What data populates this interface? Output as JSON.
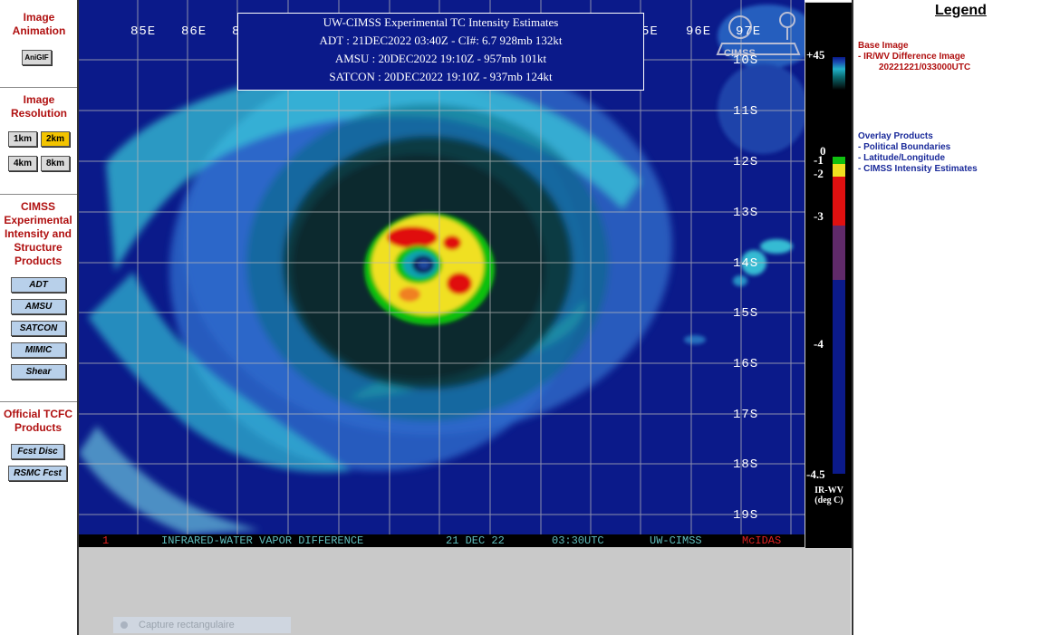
{
  "sidebar": {
    "image_animation": {
      "title": "Image Animation",
      "animgif": "AniGIF"
    },
    "image_resolution": {
      "title": "Image Resolution",
      "buttons": [
        "1km",
        "2km",
        "4km",
        "8km"
      ],
      "selected": "2km"
    },
    "cimss": {
      "title": "CIMSS Experimental Intensity and Structure Products",
      "buttons": [
        "ADT",
        "AMSU",
        "SATCON",
        "MIMIC",
        "Shear"
      ]
    },
    "official": {
      "title": "Official TCFC Products",
      "buttons": [
        "Fcst Disc",
        "RSMC Fcst"
      ]
    }
  },
  "infobox": {
    "title": "UW-CIMSS Experimental TC Intensity Estimates",
    "adt": "ADT : 21DEC2022 03:40Z -   CI#: 6.7   928mb   132kt",
    "amsu": "AMSU : 20DEC2022 19:10Z -   957mb   101kt",
    "satcon": "SATCON : 20DEC2022 19:10Z -   937mb   124kt"
  },
  "map": {
    "lon_labels": [
      "85E",
      "86E",
      "8",
      "5E",
      "96E",
      "97E"
    ],
    "lat_labels": [
      "10S",
      "11S",
      "12S",
      "13S",
      "14S",
      "15S",
      "16S",
      "17S",
      "18S",
      "19S"
    ],
    "logo_text": "CIMSS"
  },
  "status_bar": {
    "frame": "1",
    "product": "INFRARED-WATER VAPOR DIFFERENCE",
    "date": "21 DEC 22",
    "time": "03:30UTC",
    "source": "UW-CIMSS",
    "software": "McIDAS"
  },
  "colorbar": {
    "labels": [
      "+45",
      "0",
      "-1",
      "-2",
      "-3",
      "-4",
      "-4.5"
    ],
    "title_line1": "IR-WV",
    "title_line2": "(deg C)",
    "colors": {
      "top": "#0a1a8a",
      "cyan": "#20c0d0",
      "green": "#10d010",
      "yellow": "#f0e020",
      "red": "#e01010",
      "dark_red": "#8a1020",
      "purple": "#602a6a",
      "blue_dark": "#0b1a8a"
    }
  },
  "legend": {
    "title": "Legend",
    "base_image": {
      "heading": "Base Image",
      "item": "-  IR/WV Difference Image",
      "date": "20221221/033000UTC"
    },
    "overlay": {
      "heading": "Overlay Products",
      "items": [
        "-  Political Boundaries",
        "-  Latitude/Longitude",
        "-  CIMSS Intensity Estimates"
      ]
    },
    "colors": {
      "base": "#b01010",
      "overlay": "#1a2a9a"
    }
  },
  "capture_hint": "Capture rectangulaire"
}
